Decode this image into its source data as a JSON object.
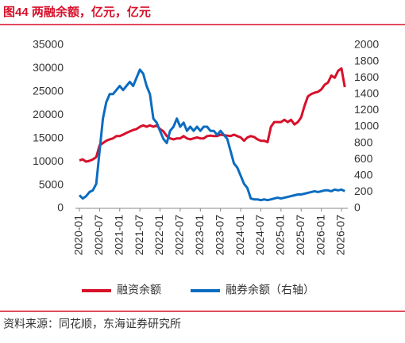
{
  "chart_data": {
    "type": "line",
    "title": "图44 两融余额，亿元，亿元",
    "source": "资料来源：同花顺，东海证券研究所",
    "categories": [
      "2020-01",
      null,
      null,
      null,
      null,
      null,
      "2020-07",
      null,
      null,
      null,
      null,
      null,
      "2021-01",
      null,
      null,
      null,
      null,
      null,
      "2021-07",
      null,
      null,
      null,
      null,
      null,
      "2022-01",
      null,
      null,
      null,
      null,
      null,
      "2022-07",
      null,
      null,
      null,
      null,
      null,
      "2023-01",
      null,
      null,
      null,
      null,
      null,
      "2023-07",
      null,
      null,
      null,
      null,
      null,
      "2024-01",
      null,
      null,
      null,
      null,
      null,
      "2024-07",
      null,
      null,
      null,
      null,
      null,
      "2025-01",
      null,
      null,
      null,
      null,
      null,
      "2025-07",
      null,
      null,
      null,
      null,
      null,
      "2026-01",
      null,
      null,
      null,
      null,
      null,
      "2026-07",
      null
    ],
    "series": [
      {
        "name": "融资余额",
        "color": "#d7102a",
        "axis": "y",
        "values": [
          10300,
          10500,
          10000,
          10200,
          10500,
          11000,
          13500,
          14000,
          14500,
          14800,
          15000,
          15500,
          15500,
          15800,
          16200,
          16500,
          16800,
          17000,
          17500,
          17800,
          17500,
          17800,
          17500,
          17800,
          17000,
          16500,
          15500,
          15000,
          14800,
          15000,
          15000,
          15500,
          15000,
          14800,
          15000,
          15200,
          15000,
          15000,
          15500,
          15600,
          15500,
          15500,
          15800,
          15700,
          15600,
          15500,
          15800,
          15500,
          15200,
          14500,
          15200,
          15500,
          15300,
          14800,
          14500,
          14500,
          14200,
          17500,
          18500,
          18500,
          18500,
          19000,
          18500,
          19000,
          18000,
          18500,
          19500,
          22000,
          24000,
          24500,
          24800,
          25000,
          25500,
          26500,
          27000,
          28500,
          28000,
          29500,
          30000,
          26000
        ]
      },
      {
        "name": "融券余额（右轴）",
        "color": "#0b6cc0",
        "axis": "y2",
        "values": [
          160,
          120,
          150,
          200,
          220,
          300,
          700,
          1100,
          1300,
          1400,
          1400,
          1450,
          1500,
          1450,
          1500,
          1550,
          1500,
          1600,
          1700,
          1650,
          1500,
          1400,
          1100,
          1050,
          950,
          850,
          800,
          950,
          1000,
          1100,
          1000,
          1050,
          950,
          1000,
          950,
          1000,
          950,
          1000,
          1000,
          950,
          950,
          900,
          950,
          900,
          850,
          700,
          550,
          500,
          400,
          300,
          250,
          120,
          110,
          110,
          100,
          110,
          100,
          110,
          120,
          130,
          120,
          130,
          140,
          150,
          160,
          170,
          170,
          180,
          190,
          200,
          210,
          200,
          210,
          220,
          220,
          210,
          230,
          220,
          230,
          210
        ]
      }
    ],
    "ylim": [
      0,
      35000
    ],
    "yticks": [
      0,
      5000,
      10000,
      15000,
      20000,
      25000,
      30000,
      35000
    ],
    "y2lim": [
      0,
      2000
    ],
    "y2ticks": [
      0,
      200,
      400,
      600,
      800,
      1000,
      1200,
      1400,
      1600,
      1800,
      2000
    ],
    "grid": false
  }
}
